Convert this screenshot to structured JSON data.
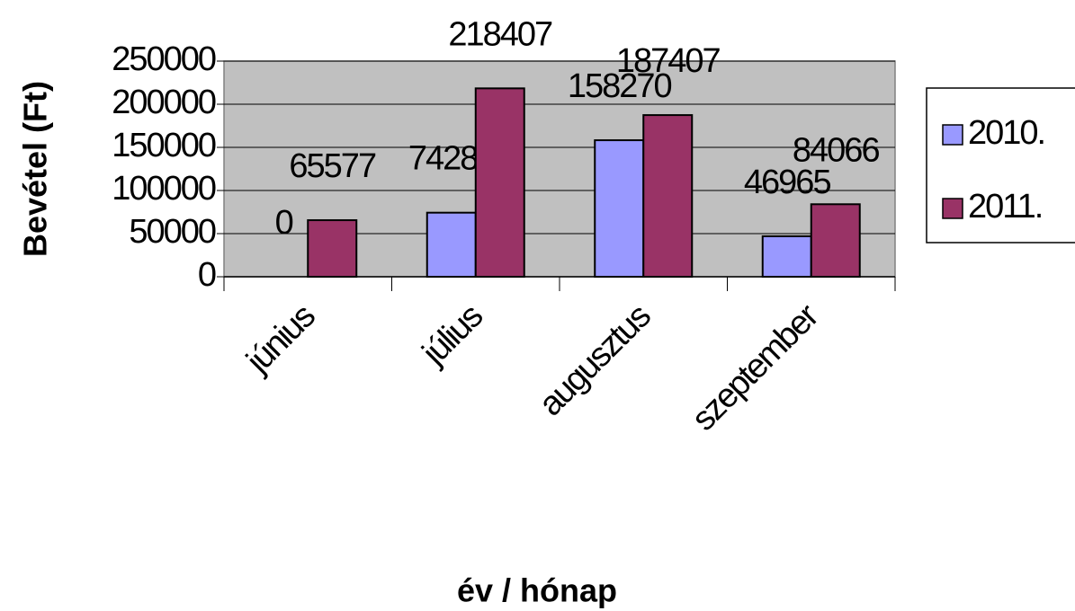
{
  "chart_data": {
    "type": "bar",
    "y_label": "Bevétel (Ft)",
    "x_label": "év / hónap",
    "categories": [
      "június",
      "július",
      "augusztus",
      "szeptember"
    ],
    "series": [
      {
        "name": "2010.",
        "color": "#9999ff",
        "values": [
          0,
          74280,
          158270,
          46965
        ]
      },
      {
        "name": "2011.",
        "color": "#993366",
        "values": [
          65577,
          218407,
          187407,
          84066
        ]
      }
    ],
    "ylim": [
      0,
      250000
    ],
    "yticks": [
      0,
      50000,
      100000,
      150000,
      200000,
      250000
    ],
    "grid": true,
    "legend": "right",
    "plot_background": "#c0c0c0"
  }
}
